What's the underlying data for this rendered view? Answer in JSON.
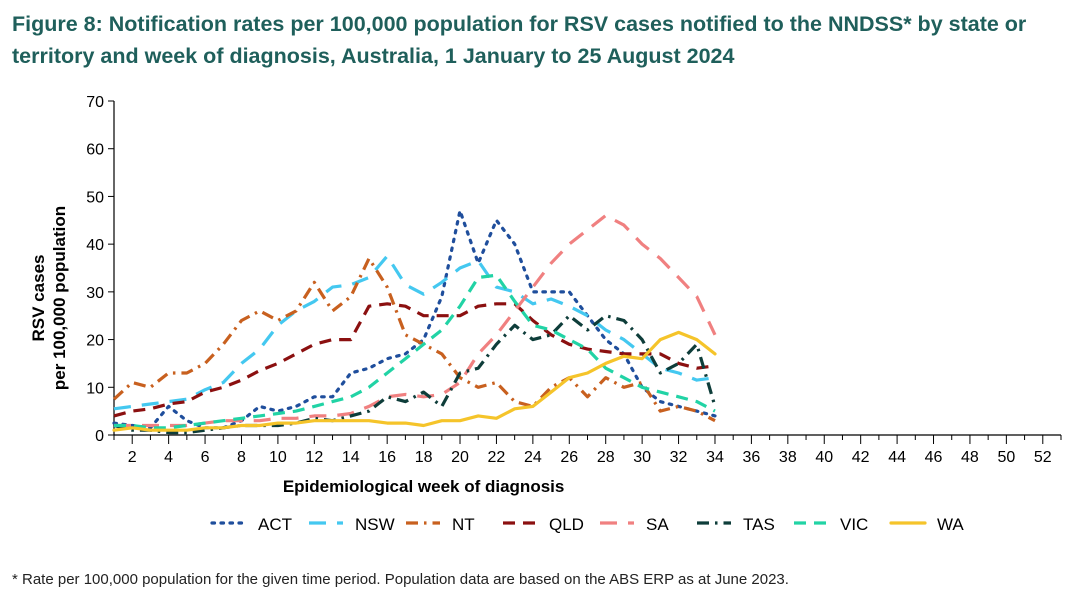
{
  "title": "Figure 8: Notification rates per 100,000 population for RSV cases notified to the NNDSS* by state or territory and week of diagnosis, Australia, 1 January to 25 August 2024",
  "footnote": "* Rate per 100,000 population for the given time period. Population data are based on the ABS ERP as at June 2023.",
  "chart_data": {
    "type": "line",
    "title": "Figure 8: Notification rates per 100,000 population for RSV cases notified to the NNDSS* by state or territory and week of diagnosis, Australia, 1 January to 25 August 2024",
    "xlabel": "Epidemiological week of diagnosis",
    "ylabel": [
      "RSV cases",
      "per 100,000 population"
    ],
    "xlim": [
      1,
      53
    ],
    "ylim": [
      0,
      70
    ],
    "yticks": [
      0,
      10,
      20,
      30,
      40,
      50,
      60,
      70
    ],
    "xticks": [
      2,
      4,
      6,
      8,
      10,
      12,
      14,
      16,
      18,
      20,
      22,
      24,
      26,
      28,
      30,
      32,
      34,
      36,
      38,
      40,
      42,
      44,
      46,
      48,
      50,
      52
    ],
    "grid": false,
    "legend_position": "bottom",
    "x": [
      1,
      2,
      3,
      4,
      5,
      6,
      7,
      8,
      9,
      10,
      11,
      12,
      13,
      14,
      15,
      16,
      17,
      18,
      19,
      20,
      21,
      22,
      23,
      24,
      25,
      26,
      27,
      28,
      29,
      30,
      31,
      32,
      33,
      34
    ],
    "series": [
      {
        "name": "ACT",
        "color": "#1f4e9c",
        "dash": "dot",
        "values": [
          2.5,
          2,
          1.5,
          6,
          3,
          1.5,
          1.5,
          3,
          6,
          5,
          6,
          8,
          8,
          13,
          14,
          16,
          17,
          20,
          29,
          47,
          36,
          45,
          40,
          30,
          30,
          30,
          25,
          20,
          17,
          10,
          7,
          6,
          5,
          4
        ]
      },
      {
        "name": "NSW",
        "color": "#44c8f0",
        "dash": "longdash",
        "values": [
          5.5,
          6,
          6.5,
          7,
          7.5,
          9.5,
          11,
          15,
          18,
          23,
          26,
          28,
          31,
          31.5,
          33,
          37.5,
          31.5,
          29.5,
          32,
          35,
          36.5,
          31,
          30,
          27.5,
          28.5,
          27,
          25,
          22,
          20,
          17,
          14,
          13,
          11.5,
          12
        ]
      },
      {
        "name": "NT",
        "color": "#c8601f",
        "dash": "dashdot",
        "values": [
          7.5,
          11,
          10,
          13,
          13,
          15,
          19,
          24,
          26,
          24,
          26,
          32,
          26,
          29,
          37,
          31,
          21,
          19,
          17,
          12,
          10,
          11,
          7,
          6,
          10,
          12,
          8,
          12,
          10,
          11,
          5,
          6,
          5,
          3
        ]
      },
      {
        "name": "QLD",
        "color": "#8b1010",
        "dash": "dash",
        "values": [
          4,
          5,
          5.5,
          6.5,
          7,
          9,
          10,
          11.5,
          13.5,
          15,
          17,
          19,
          20,
          20,
          27,
          27.5,
          27,
          25,
          25,
          25,
          27,
          27.5,
          27.5,
          24,
          21,
          19,
          18,
          17.5,
          17,
          17,
          17,
          15,
          14,
          14.5
        ]
      },
      {
        "name": "SA",
        "color": "#f08080",
        "dash": "longdash",
        "values": [
          2,
          2,
          2,
          2,
          2,
          2.5,
          3,
          3,
          3,
          3.5,
          3.5,
          4,
          4,
          4.5,
          6,
          8,
          8.5,
          8,
          8.5,
          11,
          17,
          21,
          26,
          31,
          36,
          40,
          43,
          46,
          44,
          40,
          37,
          33,
          29,
          21
        ]
      },
      {
        "name": "TAS",
        "color": "#0e3d3a",
        "dash": "dashdot",
        "values": [
          2,
          1,
          1,
          0.5,
          0.5,
          1,
          1.5,
          2,
          2,
          2,
          2.5,
          3.5,
          3,
          4,
          5,
          8,
          7,
          9,
          6,
          13,
          14,
          19,
          23,
          20,
          21,
          25,
          22,
          25,
          24,
          20,
          13,
          15,
          19,
          6
        ]
      },
      {
        "name": "VIC",
        "color": "#21d3a5",
        "dash": "dash",
        "values": [
          2,
          2,
          1.5,
          1.5,
          2,
          2.5,
          3,
          3.5,
          4,
          4.5,
          5,
          6,
          7,
          8,
          10,
          13,
          16,
          19,
          22,
          27,
          33,
          33.5,
          28,
          23,
          22,
          20,
          18,
          14,
          12,
          10,
          9,
          8,
          7,
          5
        ]
      },
      {
        "name": "WA",
        "color": "#f5c42a",
        "dash": "solid",
        "values": [
          1,
          1.5,
          1,
          1,
          1,
          1.5,
          1.5,
          2,
          2,
          2.5,
          2.5,
          3,
          3,
          3,
          3,
          2.5,
          2.5,
          2,
          3,
          3,
          4,
          3.5,
          5.5,
          6,
          9,
          12,
          13,
          15,
          16.5,
          16,
          20,
          21.5,
          20,
          17
        ]
      }
    ]
  }
}
